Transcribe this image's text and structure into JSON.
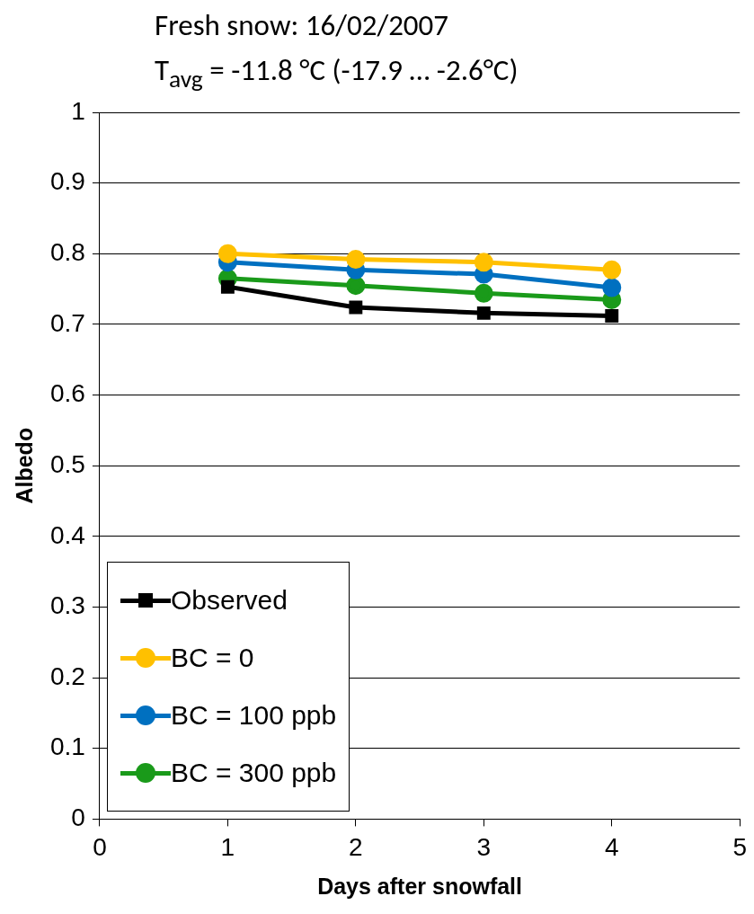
{
  "chart_data": {
    "type": "line",
    "title": "Fresh snow: 16/02/2007",
    "subtitle": "T$_{avg}$ = -11.8 °C (-17.9 … -2.6°C)",
    "xlabel": "Days after snowfall",
    "ylabel": "Albedo",
    "x": [
      1,
      2,
      3,
      4
    ],
    "series": [
      {
        "name": "Observed",
        "color": "#000000",
        "marker": "square",
        "values": [
          0.753,
          0.724,
          0.716,
          0.712
        ]
      },
      {
        "name": "BC = 0",
        "color": "#ffc000",
        "marker": "circle",
        "values": [
          0.8,
          0.792,
          0.788,
          0.777
        ]
      },
      {
        "name": "BC = 100 ppb",
        "color": "#0070c0",
        "marker": "circle",
        "values": [
          0.788,
          0.777,
          0.771,
          0.752
        ]
      },
      {
        "name": "BC = 300 ppb",
        "color": "#1a9a1a",
        "marker": "circle",
        "values": [
          0.765,
          0.755,
          0.744,
          0.735
        ]
      }
    ],
    "xlim": [
      0,
      5
    ],
    "xticks": [
      0,
      1,
      2,
      3,
      4,
      5
    ],
    "ylim": [
      0,
      1
    ],
    "yticks": [
      0,
      0.1,
      0.2,
      0.3,
      0.4,
      0.5,
      0.6,
      0.7,
      0.8,
      0.9,
      1
    ],
    "grid": "y",
    "legend": "bottom left",
    "line_style": "solid"
  }
}
